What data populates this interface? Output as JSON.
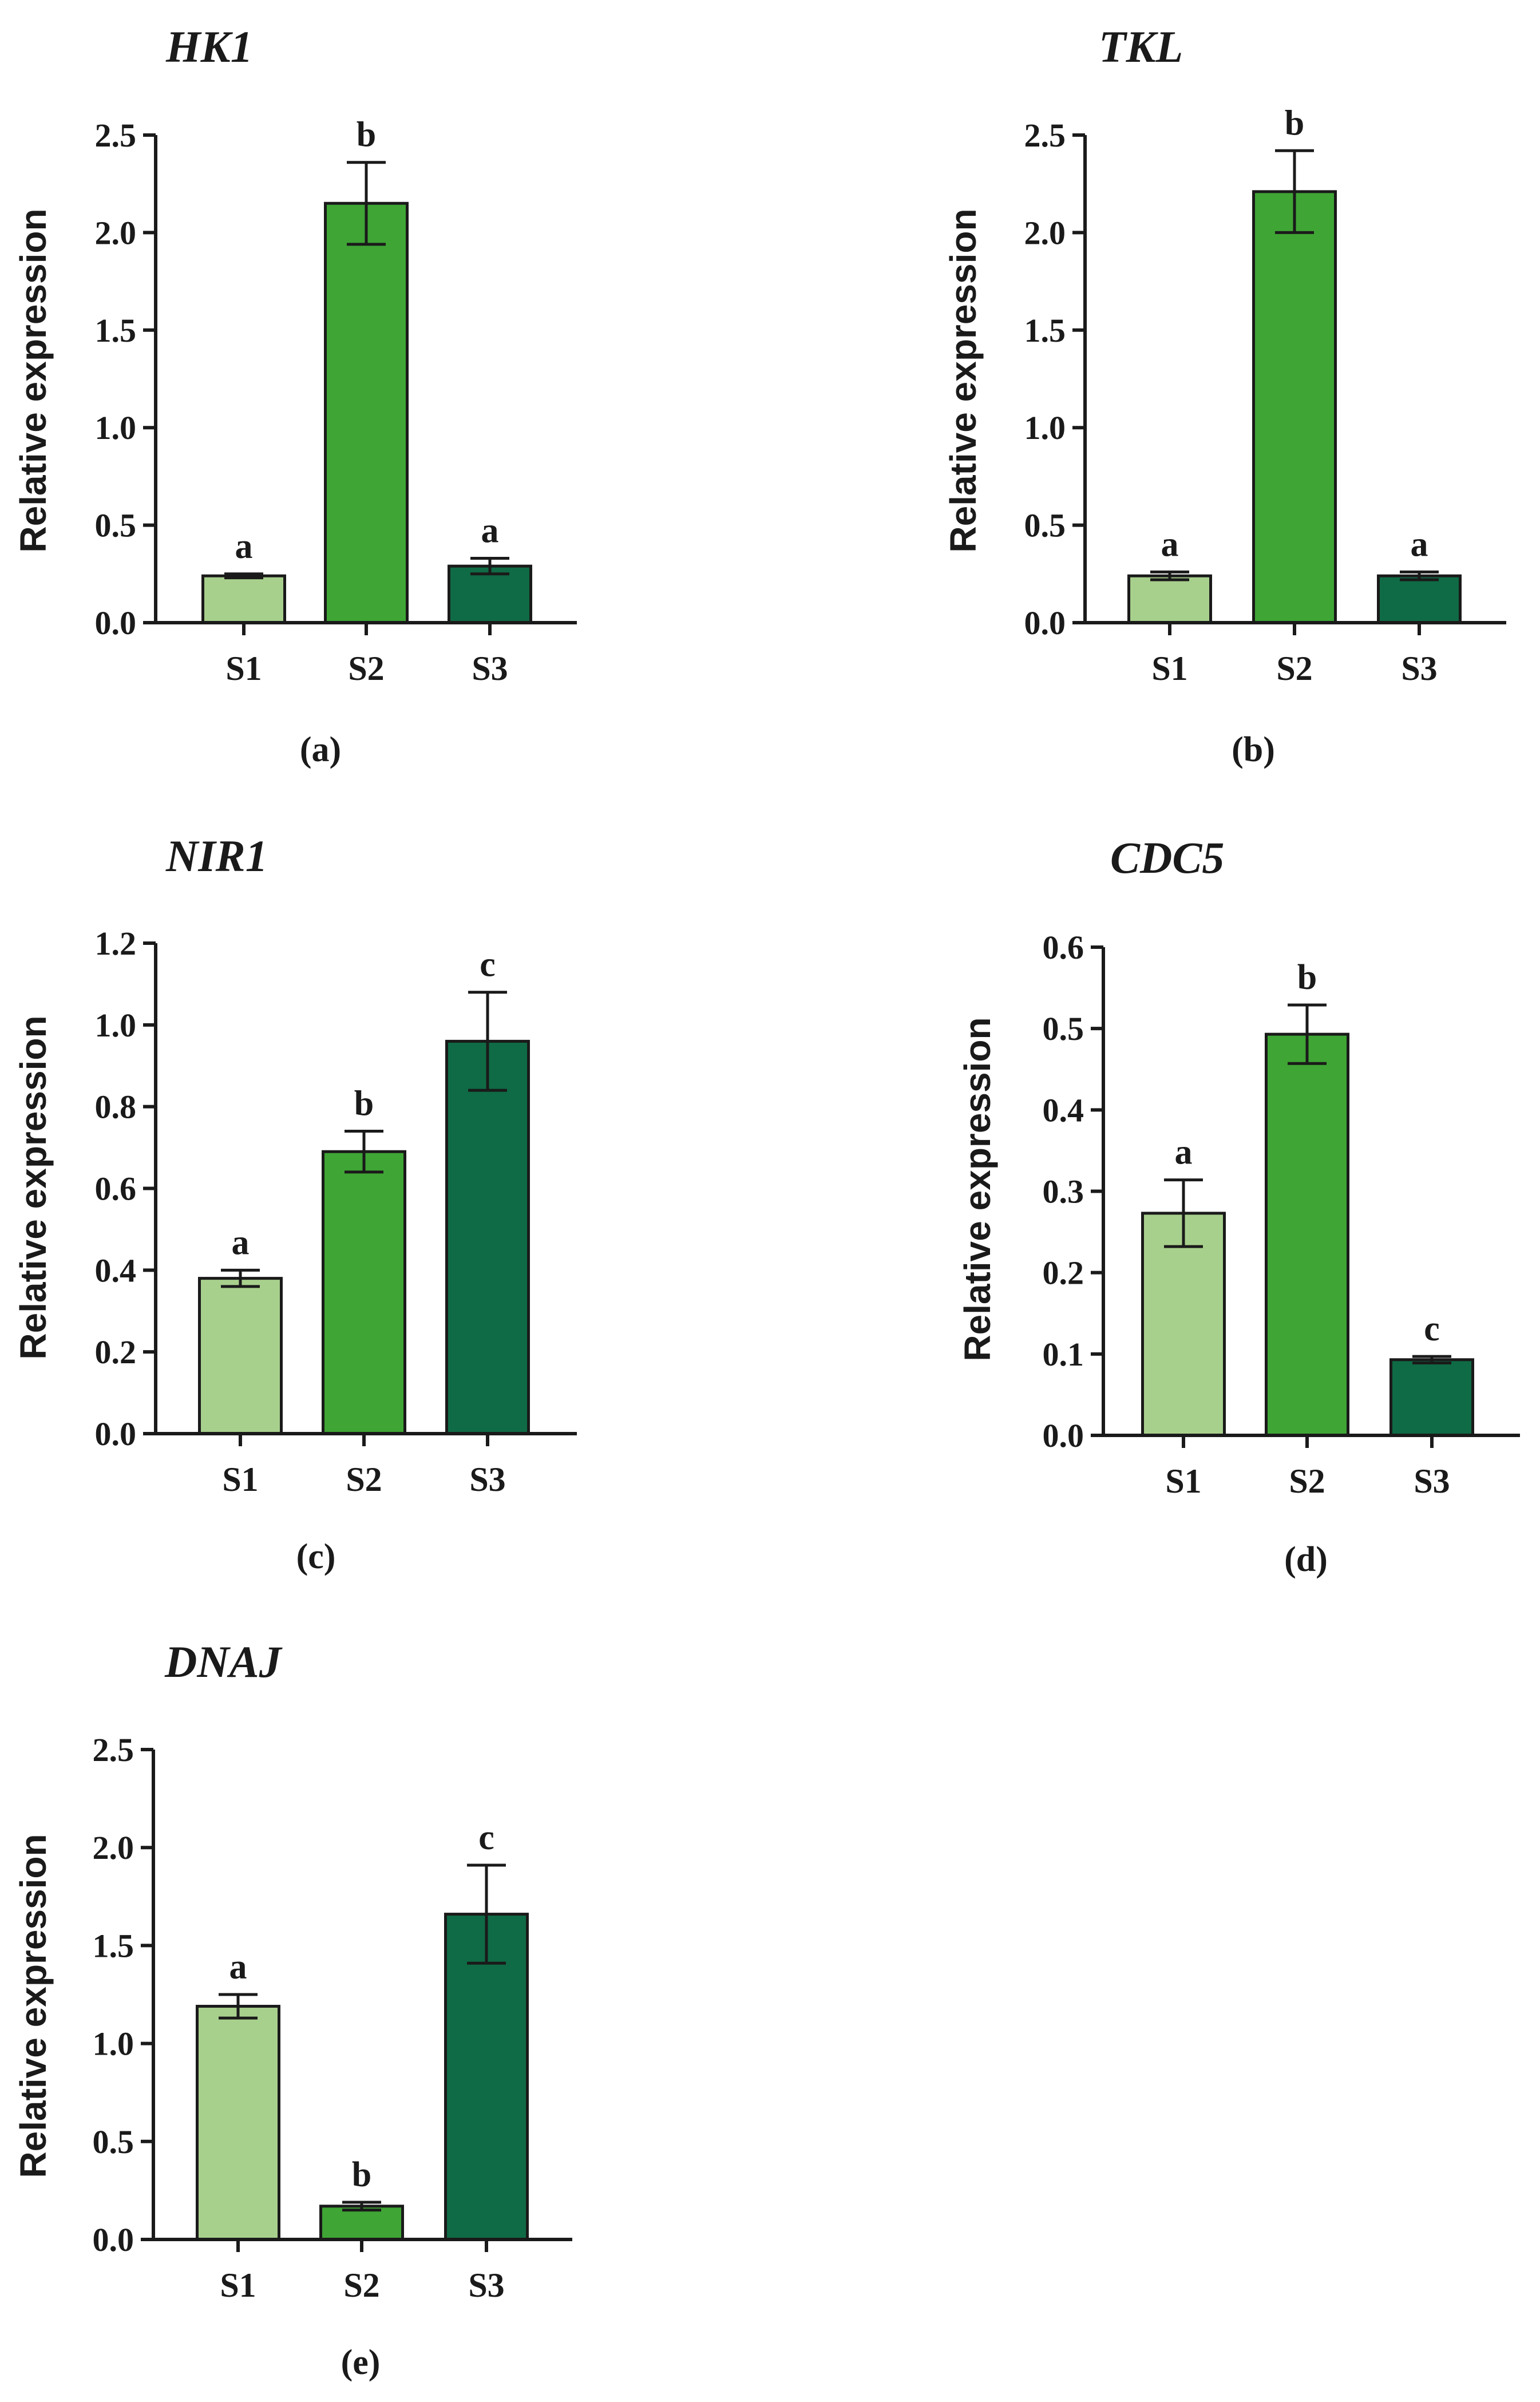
{
  "figure": {
    "colors": {
      "S1": "#a8d08d",
      "S2": "#3fa535",
      "S3": "#0f6b45"
    }
  },
  "chart_data": [
    {
      "type": "bar",
      "title": "HK1",
      "panel_label": "(a)",
      "ylabel": "Relative expression",
      "categories": [
        "S1",
        "S2",
        "S3"
      ],
      "values": [
        0.24,
        2.15,
        0.29
      ],
      "errors": [
        0.01,
        0.21,
        0.04
      ],
      "significance": [
        "a",
        "b",
        "a"
      ],
      "ylim": [
        0,
        2.5
      ],
      "yticks": [
        "0.0",
        "0.5",
        "1.0",
        "1.5",
        "2.0",
        "2.5"
      ]
    },
    {
      "type": "bar",
      "title": "TKL",
      "panel_label": "(b)",
      "ylabel": "Relative expression",
      "categories": [
        "S1",
        "S2",
        "S3"
      ],
      "values": [
        0.24,
        2.21,
        0.24
      ],
      "errors": [
        0.02,
        0.21,
        0.02
      ],
      "significance": [
        "a",
        "b",
        "a"
      ],
      "ylim": [
        0,
        2.5
      ],
      "yticks": [
        "0.0",
        "0.5",
        "1.0",
        "1.5",
        "2.0",
        "2.5"
      ]
    },
    {
      "type": "bar",
      "title": "NIR1",
      "panel_label": "(c)",
      "ylabel": "Relative expression",
      "categories": [
        "S1",
        "S2",
        "S3"
      ],
      "values": [
        0.38,
        0.69,
        0.96
      ],
      "errors": [
        0.02,
        0.05,
        0.12
      ],
      "significance": [
        "a",
        "b",
        "c"
      ],
      "ylim": [
        0,
        1.2
      ],
      "yticks": [
        "0.0",
        "0.2",
        "0.4",
        "0.6",
        "0.8",
        "1.0",
        "1.2"
      ]
    },
    {
      "type": "bar",
      "title": "CDC5",
      "panel_label": "(d)",
      "ylabel": "Relative expression",
      "categories": [
        "S1",
        "S2",
        "S3"
      ],
      "values": [
        0.273,
        0.493,
        0.093
      ],
      "errors": [
        0.041,
        0.036,
        0.004
      ],
      "significance": [
        "a",
        "b",
        "c"
      ],
      "ylim": [
        0,
        0.6
      ],
      "yticks": [
        "0.0",
        "0.1",
        "0.2",
        "0.3",
        "0.4",
        "0.5",
        "0.6"
      ]
    },
    {
      "type": "bar",
      "title": "DNAJ",
      "panel_label": "(e)",
      "ylabel": "Relative expression",
      "categories": [
        "S1",
        "S2",
        "S3"
      ],
      "values": [
        1.19,
        0.17,
        1.66
      ],
      "errors": [
        0.06,
        0.02,
        0.25
      ],
      "significance": [
        "a",
        "b",
        "c"
      ],
      "ylim": [
        0,
        2.5
      ],
      "yticks": [
        "0.0",
        "0.5",
        "1.0",
        "1.5",
        "2.0",
        "2.5"
      ]
    }
  ]
}
